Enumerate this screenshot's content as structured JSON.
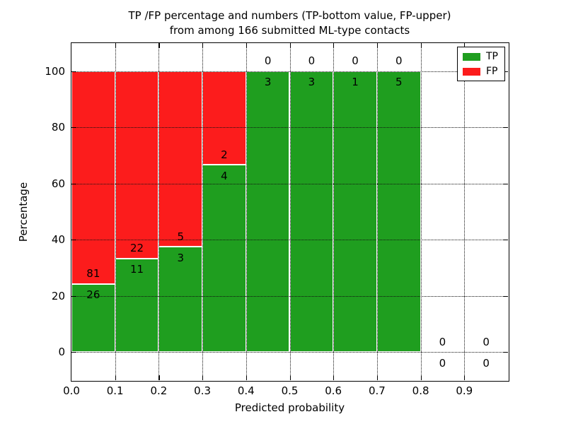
{
  "title": {
    "line1": "TP /FP percentage and numbers (TP-bottom value, FP-upper)",
    "line2": "from among 166 submitted ML-type contacts"
  },
  "axes": {
    "ylabel": "Percentage",
    "xlabel": "Predicted probability"
  },
  "legend": {
    "position": "upper right",
    "items": [
      {
        "label": "TP",
        "color_key": "tp"
      },
      {
        "label": "FP",
        "color_key": "fp"
      }
    ]
  },
  "chart_data": {
    "type": "bar",
    "stacked": true,
    "title": "TP /FP percentage and numbers (TP-bottom value, FP-upper) from among 166 submitted ML-type contacts",
    "xlabel": "Predicted probability",
    "ylabel": "Percentage",
    "xlim": [
      0.0,
      1.0
    ],
    "ylim": [
      -10,
      110
    ],
    "grid": "dotted",
    "legend_position": "upper right",
    "total_contacts": 166,
    "bin_width": 0.1,
    "colors": {
      "tp": "#1f9e1f",
      "fp": "#fc1c1c"
    },
    "yticks": [
      {
        "value": 0,
        "label": "0"
      },
      {
        "value": 20,
        "label": "20"
      },
      {
        "value": 40,
        "label": "40"
      },
      {
        "value": 60,
        "label": "60"
      },
      {
        "value": 80,
        "label": "80"
      },
      {
        "value": 100,
        "label": "100"
      }
    ],
    "xticks": [
      {
        "value": 0.0,
        "label": "0.0"
      },
      {
        "value": 0.1,
        "label": "0.1"
      },
      {
        "value": 0.2,
        "label": "0.2"
      },
      {
        "value": 0.3,
        "label": "0.3"
      },
      {
        "value": 0.4,
        "label": "0.4"
      },
      {
        "value": 0.5,
        "label": "0.5"
      },
      {
        "value": 0.6,
        "label": "0.6"
      },
      {
        "value": 0.7,
        "label": "0.7"
      },
      {
        "value": 0.8,
        "label": "0.8"
      },
      {
        "value": 0.9,
        "label": "0.9"
      }
    ],
    "bins": [
      {
        "x_start": 0.0,
        "x_end": 0.1,
        "tp_count": 26,
        "fp_count": 81,
        "tp_pct": 24.3,
        "fp_pct": 75.7
      },
      {
        "x_start": 0.1,
        "x_end": 0.2,
        "tp_count": 11,
        "fp_count": 22,
        "tp_pct": 33.3,
        "fp_pct": 66.7
      },
      {
        "x_start": 0.2,
        "x_end": 0.3,
        "tp_count": 3,
        "fp_count": 5,
        "tp_pct": 37.5,
        "fp_pct": 62.5
      },
      {
        "x_start": 0.3,
        "x_end": 0.4,
        "tp_count": 4,
        "fp_count": 2,
        "tp_pct": 66.7,
        "fp_pct": 33.3
      },
      {
        "x_start": 0.4,
        "x_end": 0.5,
        "tp_count": 3,
        "fp_count": 0,
        "tp_pct": 100.0,
        "fp_pct": 0.0
      },
      {
        "x_start": 0.5,
        "x_end": 0.6,
        "tp_count": 3,
        "fp_count": 0,
        "tp_pct": 100.0,
        "fp_pct": 0.0
      },
      {
        "x_start": 0.6,
        "x_end": 0.7,
        "tp_count": 1,
        "fp_count": 0,
        "tp_pct": 100.0,
        "fp_pct": 0.0
      },
      {
        "x_start": 0.7,
        "x_end": 0.8,
        "tp_count": 5,
        "fp_count": 0,
        "tp_pct": 100.0,
        "fp_pct": 0.0
      },
      {
        "x_start": 0.8,
        "x_end": 0.9,
        "tp_count": 0,
        "fp_count": 0,
        "tp_pct": 0.0,
        "fp_pct": 0.0
      },
      {
        "x_start": 0.9,
        "x_end": 1.0,
        "tp_count": 0,
        "fp_count": 0,
        "tp_pct": 0.0,
        "fp_pct": 0.0
      }
    ]
  }
}
